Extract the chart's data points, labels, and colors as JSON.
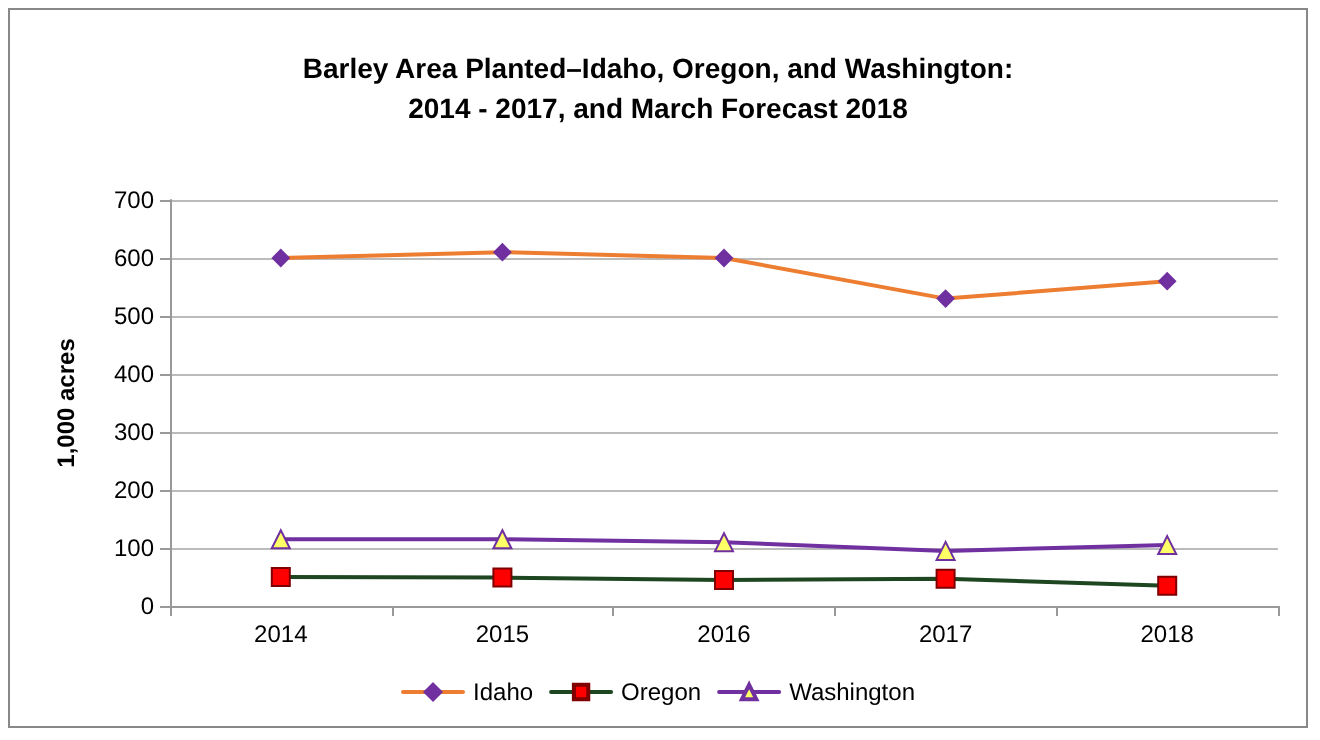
{
  "chart_data": {
    "type": "line",
    "title": "Barley Area Planted–Idaho, Oregon, and Washington:\n2014 - 2017, and March Forecast 2018",
    "ylabel": "1,000 acres",
    "categories": [
      "2014",
      "2015",
      "2016",
      "2017",
      "2018"
    ],
    "series": [
      {
        "name": "Idaho",
        "color": "#ed7d31",
        "marker": "diamond",
        "values": [
          600,
          610,
          600,
          530,
          560
        ]
      },
      {
        "name": "Oregon",
        "color": "#1e4620",
        "marker": "square",
        "values": [
          50,
          49,
          45,
          47,
          35
        ]
      },
      {
        "name": "Washington",
        "color": "#7030a0",
        "marker": "triangle",
        "values": [
          115,
          115,
          110,
          95,
          105
        ]
      }
    ],
    "ylim": [
      0,
      700
    ],
    "yticks": [
      0,
      100,
      200,
      300,
      400,
      500,
      600,
      700
    ],
    "grid": "y",
    "legend": "bottom"
  }
}
